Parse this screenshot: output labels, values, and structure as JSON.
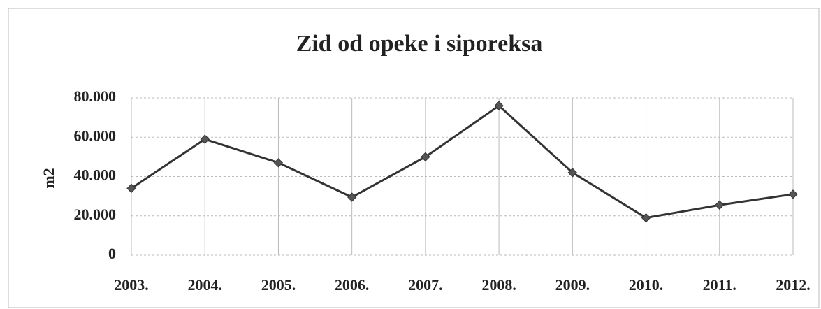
{
  "chart_data": {
    "type": "line",
    "title": "Zid od opeke i siporeksa",
    "y_label": "m2",
    "categories": [
      "2003.",
      "2004.",
      "2005.",
      "2006.",
      "2007.",
      "2008.",
      "2009.",
      "2010.",
      "2011.",
      "2012."
    ],
    "series": [
      {
        "name": "m2",
        "color": "#333333",
        "values": [
          34000,
          59000,
          47000,
          29500,
          50000,
          76000,
          42000,
          19000,
          25500,
          31000
        ]
      }
    ],
    "ylim": [
      0,
      80000
    ],
    "yticks": [
      0,
      {
        "value": 20000,
        "label": "20.000"
      },
      {
        "value": 40000,
        "label": "40.000"
      },
      {
        "value": 60000,
        "label": "60.000"
      },
      {
        "value": 80000,
        "label": "80.000"
      }
    ],
    "grid": true
  }
}
